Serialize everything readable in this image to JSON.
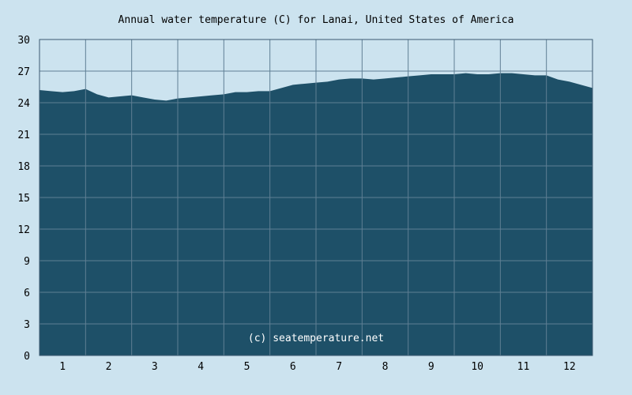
{
  "chart_data": {
    "type": "area",
    "title": "Annual water temperature (C) for Lanai, United States of America",
    "xlabel": "",
    "ylabel": "",
    "x_ticks": [
      "1",
      "2",
      "3",
      "4",
      "5",
      "6",
      "7",
      "8",
      "9",
      "10",
      "11",
      "12"
    ],
    "xlim": [
      0,
      12
    ],
    "ylim": [
      0,
      30
    ],
    "y_ticks": [
      0,
      3,
      6,
      9,
      12,
      15,
      18,
      21,
      24,
      27,
      30
    ],
    "grid": true,
    "series": [
      {
        "x": [
          0.0,
          0.25,
          0.5,
          0.75,
          1.0,
          1.25,
          1.5,
          1.75,
          2.0,
          2.25,
          2.5,
          2.75,
          3.0,
          3.25,
          3.5,
          3.75,
          4.0,
          4.25,
          4.5,
          4.75,
          5.0,
          5.25,
          5.5,
          5.75,
          6.0,
          6.25,
          6.5,
          6.75,
          7.0,
          7.25,
          7.5,
          7.75,
          8.0,
          8.25,
          8.5,
          8.75,
          9.0,
          9.25,
          9.5,
          9.75,
          10.0,
          10.25,
          10.5,
          10.75,
          11.0,
          11.25,
          11.5,
          11.75,
          12.0
        ],
        "values": [
          25.2,
          25.1,
          25.0,
          25.1,
          25.3,
          24.8,
          24.5,
          24.6,
          24.7,
          24.5,
          24.3,
          24.2,
          24.4,
          24.5,
          24.6,
          24.7,
          24.8,
          25.0,
          25.0,
          25.1,
          25.1,
          25.4,
          25.7,
          25.8,
          25.9,
          26.0,
          26.2,
          26.3,
          26.3,
          26.2,
          26.3,
          26.4,
          26.5,
          26.6,
          26.7,
          26.7,
          26.7,
          26.8,
          26.7,
          26.7,
          26.8,
          26.8,
          26.7,
          26.6,
          26.6,
          26.2,
          26.0,
          25.7,
          25.4
        ]
      }
    ],
    "watermark": "(c) seatemperature.net",
    "colors": {
      "background": "#cce3ef",
      "fill": "#1e5068",
      "grid": "#5f7f94",
      "axis": "#3c5a70",
      "watermark": "#ffffff"
    }
  }
}
